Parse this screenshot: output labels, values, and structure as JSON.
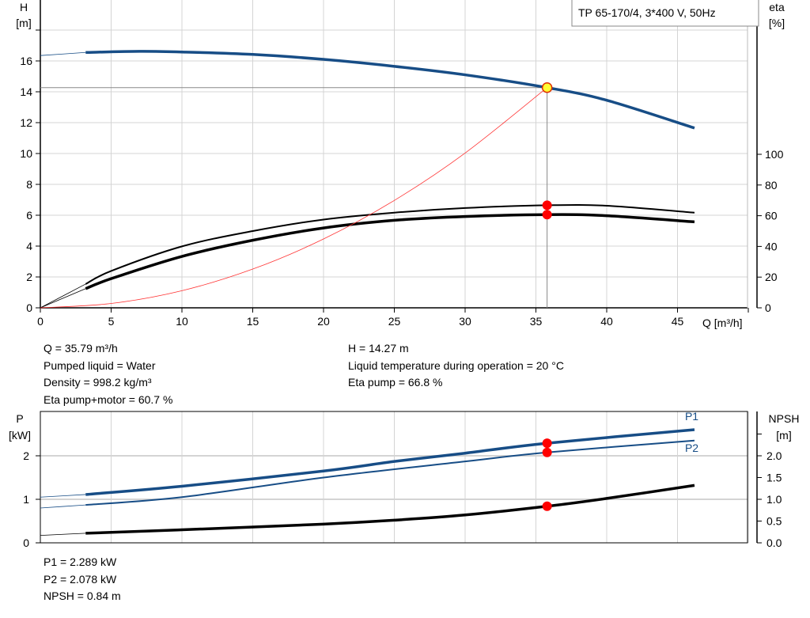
{
  "chart_data": [
    {
      "type": "line",
      "title": "TP 65-170/4, 3*400 V, 50Hz",
      "xlabel": "Q [m³/h]",
      "ylabel": "H",
      "ylabel_unit": "[m]",
      "y2label": "eta",
      "y2label_unit": "[%]",
      "xlim": [
        0,
        50
      ],
      "ylim": [
        0,
        20
      ],
      "y2lim": [
        0,
        200
      ],
      "xticks": [
        0,
        5,
        10,
        15,
        20,
        25,
        30,
        35,
        40,
        45
      ],
      "yticks": [
        0,
        2,
        4,
        6,
        8,
        10,
        12,
        14,
        16
      ],
      "y2ticks": [
        0,
        20,
        40,
        60,
        80,
        100
      ],
      "grid": true,
      "series": [
        {
          "key": "H",
          "axis": "left",
          "color": "#174d86",
          "x": [
            0,
            3.2,
            7,
            10,
            15,
            20,
            25,
            30,
            35.79,
            40,
            46.2
          ],
          "y": [
            16.35,
            16.55,
            16.62,
            16.58,
            16.42,
            16.1,
            15.65,
            15.1,
            14.27,
            13.45,
            11.65
          ]
        },
        {
          "key": "eta_pump",
          "axis": "right",
          "color": "#000000",
          "x": [
            0,
            3.2,
            5,
            10,
            15,
            20,
            25,
            30,
            35.79,
            40,
            46.2
          ],
          "y": [
            0,
            15.5,
            24,
            40,
            50,
            57.5,
            62,
            65,
            66.8,
            66.5,
            62
          ]
        },
        {
          "key": "eta_total",
          "axis": "right",
          "color": "#000000",
          "x": [
            0,
            3.2,
            5,
            10,
            15,
            20,
            25,
            30,
            35.79,
            40,
            46.2
          ],
          "y": [
            0,
            12.5,
            19,
            33.5,
            44,
            52,
            57,
            59.5,
            60.7,
            60,
            56
          ]
        },
        {
          "key": "system",
          "axis": "left",
          "color": "#ff3333",
          "x": [
            0,
            5,
            10,
            15,
            20,
            25,
            30,
            35.79
          ],
          "y": [
            0,
            0.28,
            1.11,
            2.51,
            4.46,
            6.96,
            10.03,
            14.27
          ]
        }
      ],
      "operating_point": {
        "Q": 35.79,
        "H": 14.27,
        "eta_pump": 66.8,
        "eta_total": 60.7
      }
    },
    {
      "type": "line",
      "ylabel": "P",
      "ylabel_unit": "[kW]",
      "y2label": "NPSH",
      "y2label_unit": "[m]",
      "xlim": [
        0,
        50
      ],
      "ylim": [
        0,
        3
      ],
      "y2lim": [
        0,
        3
      ],
      "yticks": [
        0,
        1,
        2
      ],
      "y2ticks": [
        "0.0",
        "0.5",
        "1.0",
        "1.5",
        "2.0",
        2.5
      ],
      "y2ticklabels": [
        "0.0",
        "0.5",
        "1.0",
        "1.5",
        "2.0",
        ""
      ],
      "unit_label_extra": "",
      "grid": true,
      "series": [
        {
          "name": "P1",
          "axis": "left",
          "color": "#174d86",
          "x": [
            0,
            3.2,
            10,
            20,
            25,
            30,
            35.79,
            46.2
          ],
          "y": [
            1.05,
            1.11,
            1.3,
            1.65,
            1.87,
            2.06,
            2.289,
            2.6
          ]
        },
        {
          "name": "P2",
          "axis": "left",
          "color": "#174d86",
          "x": [
            0,
            3.2,
            10,
            20,
            30,
            35.79,
            46.2
          ],
          "y": [
            0.8,
            0.87,
            1.05,
            1.5,
            1.87,
            2.078,
            2.35
          ]
        },
        {
          "key": "NPSH",
          "axis": "right",
          "color": "#000000",
          "x": [
            0,
            3.2,
            10,
            20,
            25,
            30,
            35.79,
            40,
            46.2
          ],
          "y": [
            0.17,
            0.22,
            0.3,
            0.43,
            0.52,
            0.64,
            0.84,
            1.02,
            1.32
          ]
        }
      ],
      "operating_point": {
        "Q": 35.79,
        "P1": 2.289,
        "P2": 2.078,
        "NPSH": 0.84
      }
    }
  ],
  "info_top": {
    "left": [
      "Q = 35.79 m³/h",
      "Pumped liquid = Water",
      "Density = 998.2 kg/m³",
      "Eta pump+motor = 60.7 %"
    ],
    "right": [
      "H = 14.27 m",
      "Liquid temperature during operation = 20 °C",
      "Eta pump = 66.8 %"
    ]
  },
  "info_bottom": [
    "P1 = 2.289 kW",
    "P2 = 2.078 kW",
    "NPSH = 0.84 m"
  ]
}
